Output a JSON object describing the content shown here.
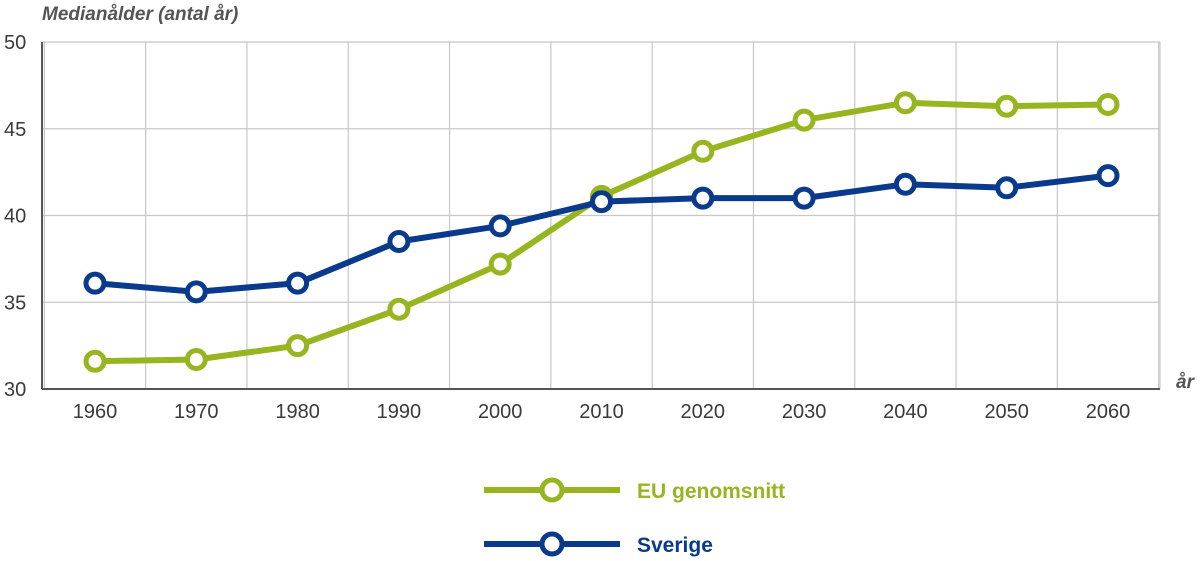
{
  "chart_data": {
    "type": "line",
    "title": "",
    "ylabel": "Medianålder (antal år)",
    "xlabel": "år",
    "x": [
      "1960",
      "1970",
      "1980",
      "1990",
      "2000",
      "2010",
      "2020",
      "2030",
      "2040",
      "2050",
      "2060"
    ],
    "ylim": [
      30,
      50
    ],
    "yticks": [
      "30",
      "35",
      "40",
      "45",
      "50"
    ],
    "grid": true,
    "legend_position": "bottom-center",
    "series": [
      {
        "name": "EU genomsnitt",
        "color": "#96b51e",
        "values": [
          31.6,
          31.7,
          32.5,
          34.6,
          37.2,
          41.1,
          43.7,
          45.5,
          46.5,
          46.3,
          46.4
        ]
      },
      {
        "name": "Sverige",
        "color": "#0a3a8c",
        "values": [
          36.1,
          35.6,
          36.1,
          38.5,
          39.4,
          40.8,
          41.0,
          41.0,
          41.8,
          41.6,
          42.3
        ]
      }
    ]
  }
}
